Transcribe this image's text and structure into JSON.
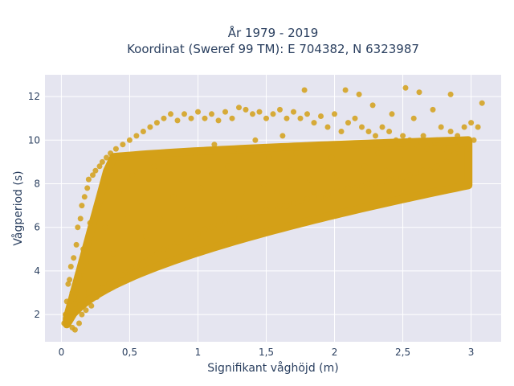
{
  "chart_data": {
    "type": "scatter",
    "title": "År 1979 - 2019",
    "subtitle": "Koordinat (Sweref 99 TM): E 704382, N 6323987",
    "xlabel": "Signifikant våghöjd (m)",
    "ylabel": "Vågperiod (s)",
    "xlim": [
      -0.12,
      3.22
    ],
    "ylim": [
      0.75,
      13.0
    ],
    "x_ticks": [
      0,
      0.5,
      1,
      1.5,
      2,
      2.5,
      3
    ],
    "x_tick_labels": [
      "0",
      "0,5",
      "1",
      "1,5",
      "2",
      "2,5",
      "3"
    ],
    "y_ticks": [
      2,
      4,
      6,
      8,
      10,
      12
    ],
    "y_tick_labels": [
      "2",
      "4",
      "6",
      "8",
      "10",
      "12"
    ],
    "grid": true,
    "legend": "none",
    "marker_color": "#D4A017",
    "plot_background": "#E5E5F0",
    "series": [
      {
        "values": [
          [
            0.02,
            1.6
          ],
          [
            0.03,
            2.0
          ],
          [
            0.04,
            2.6
          ],
          [
            0.05,
            3.4
          ],
          [
            0.06,
            3.6
          ],
          [
            0.05,
            2.2
          ],
          [
            0.07,
            4.2
          ],
          [
            0.08,
            1.4
          ],
          [
            0.08,
            3.0
          ],
          [
            0.09,
            4.6
          ],
          [
            0.1,
            1.3
          ],
          [
            0.1,
            2.5
          ],
          [
            0.11,
            5.2
          ],
          [
            0.12,
            6.0
          ],
          [
            0.13,
            1.6
          ],
          [
            0.13,
            3.8
          ],
          [
            0.14,
            6.4
          ],
          [
            0.15,
            2.0
          ],
          [
            0.15,
            7.0
          ],
          [
            0.16,
            5.0
          ],
          [
            0.17,
            7.4
          ],
          [
            0.18,
            2.2
          ],
          [
            0.18,
            4.4
          ],
          [
            0.19,
            7.8
          ],
          [
            0.2,
            8.2
          ],
          [
            0.2,
            3.0
          ],
          [
            0.21,
            6.2
          ],
          [
            0.22,
            2.4
          ],
          [
            0.23,
            8.4
          ],
          [
            0.24,
            5.4
          ],
          [
            0.25,
            8.6
          ],
          [
            0.26,
            2.8
          ],
          [
            0.27,
            7.0
          ],
          [
            0.28,
            8.8
          ],
          [
            0.3,
            3.2
          ],
          [
            0.3,
            9.0
          ],
          [
            0.32,
            6.0
          ],
          [
            0.33,
            9.2
          ],
          [
            0.35,
            3.4
          ],
          [
            0.36,
            9.4
          ],
          [
            0.38,
            4.8
          ],
          [
            0.4,
            9.6
          ],
          [
            0.4,
            3.6
          ],
          [
            0.42,
            7.6
          ],
          [
            0.45,
            9.8
          ],
          [
            0.45,
            3.8
          ],
          [
            0.48,
            6.6
          ],
          [
            0.5,
            10.0
          ],
          [
            0.5,
            4.0
          ],
          [
            0.52,
            8.4
          ],
          [
            0.55,
            10.2
          ],
          [
            0.55,
            4.2
          ],
          [
            0.58,
            7.2
          ],
          [
            0.6,
            10.4
          ],
          [
            0.6,
            4.4
          ],
          [
            0.62,
            5.6
          ],
          [
            0.65,
            10.6
          ],
          [
            0.65,
            4.6
          ],
          [
            0.68,
            8.8
          ],
          [
            0.7,
            10.8
          ],
          [
            0.7,
            4.8
          ],
          [
            0.72,
            6.4
          ],
          [
            0.75,
            11.0
          ],
          [
            0.75,
            5.0
          ],
          [
            0.78,
            9.0
          ],
          [
            0.8,
            11.2
          ],
          [
            0.8,
            5.1
          ],
          [
            0.82,
            7.4
          ],
          [
            0.85,
            10.9
          ],
          [
            0.85,
            5.3
          ],
          [
            0.88,
            8.2
          ],
          [
            0.9,
            11.2
          ],
          [
            0.9,
            5.4
          ],
          [
            0.92,
            6.8
          ],
          [
            0.95,
            11.0
          ],
          [
            0.95,
            5.6
          ],
          [
            0.98,
            9.4
          ],
          [
            1.0,
            11.3
          ],
          [
            1.0,
            5.7
          ],
          [
            1.02,
            7.8
          ],
          [
            1.05,
            11.0
          ],
          [
            1.05,
            5.9
          ],
          [
            1.08,
            8.6
          ],
          [
            1.1,
            11.2
          ],
          [
            1.1,
            6.0
          ],
          [
            1.12,
            9.8
          ],
          [
            1.15,
            10.9
          ],
          [
            1.15,
            6.1
          ],
          [
            1.18,
            7.2
          ],
          [
            1.2,
            11.3
          ],
          [
            1.2,
            6.2
          ],
          [
            1.22,
            8.8
          ],
          [
            1.25,
            11.0
          ],
          [
            1.25,
            6.3
          ],
          [
            1.28,
            9.6
          ],
          [
            1.3,
            11.5
          ],
          [
            1.3,
            6.4
          ],
          [
            1.32,
            7.6
          ],
          [
            1.35,
            11.4
          ],
          [
            1.35,
            6.5
          ],
          [
            1.38,
            8.4
          ],
          [
            1.4,
            11.2
          ],
          [
            1.4,
            6.6
          ],
          [
            1.42,
            10.0
          ],
          [
            1.45,
            11.3
          ],
          [
            1.45,
            6.7
          ],
          [
            1.48,
            8.0
          ],
          [
            1.5,
            11.0
          ],
          [
            1.5,
            6.8
          ],
          [
            1.52,
            9.2
          ],
          [
            1.55,
            11.2
          ],
          [
            1.55,
            6.9
          ],
          [
            1.58,
            7.6
          ],
          [
            1.6,
            11.4
          ],
          [
            1.6,
            7.0
          ],
          [
            1.62,
            10.2
          ],
          [
            1.65,
            11.0
          ],
          [
            1.65,
            7.0
          ],
          [
            1.68,
            8.6
          ],
          [
            1.7,
            11.3
          ],
          [
            1.7,
            7.1
          ],
          [
            1.72,
            9.4
          ],
          [
            1.75,
            11.0
          ],
          [
            1.75,
            7.2
          ],
          [
            1.78,
            12.3
          ],
          [
            1.8,
            11.2
          ],
          [
            1.8,
            7.3
          ],
          [
            1.82,
            8.2
          ],
          [
            1.85,
            10.8
          ],
          [
            1.85,
            7.4
          ],
          [
            1.88,
            9.8
          ],
          [
            1.9,
            11.1
          ],
          [
            1.9,
            7.4
          ],
          [
            1.92,
            8.6
          ],
          [
            1.95,
            10.6
          ],
          [
            1.95,
            7.5
          ],
          [
            1.98,
            9.2
          ],
          [
            2.0,
            11.2
          ],
          [
            2.0,
            7.6
          ],
          [
            2.02,
            8.4
          ],
          [
            2.05,
            10.4
          ],
          [
            2.05,
            7.7
          ],
          [
            2.08,
            12.3
          ],
          [
            2.1,
            10.8
          ],
          [
            2.1,
            7.8
          ],
          [
            2.12,
            9.0
          ],
          [
            2.15,
            11.0
          ],
          [
            2.15,
            7.8
          ],
          [
            2.18,
            12.1
          ],
          [
            2.2,
            10.6
          ],
          [
            2.2,
            7.9
          ],
          [
            2.22,
            8.8
          ],
          [
            2.25,
            10.4
          ],
          [
            2.25,
            8.0
          ],
          [
            2.28,
            11.6
          ],
          [
            2.3,
            10.2
          ],
          [
            2.3,
            8.0
          ],
          [
            2.32,
            9.4
          ],
          [
            2.35,
            10.6
          ],
          [
            2.35,
            8.1
          ],
          [
            2.38,
            8.6
          ],
          [
            2.4,
            10.4
          ],
          [
            2.4,
            8.2
          ],
          [
            2.42,
            11.2
          ],
          [
            2.45,
            10.0
          ],
          [
            2.45,
            8.3
          ],
          [
            2.48,
            9.2
          ],
          [
            2.5,
            10.2
          ],
          [
            2.5,
            8.3
          ],
          [
            2.52,
            12.4
          ],
          [
            2.55,
            10.0
          ],
          [
            2.55,
            8.4
          ],
          [
            2.58,
            11.0
          ],
          [
            2.6,
            9.8
          ],
          [
            2.6,
            8.5
          ],
          [
            2.62,
            12.2
          ],
          [
            2.65,
            10.2
          ],
          [
            2.65,
            8.6
          ],
          [
            2.68,
            9.6
          ],
          [
            2.7,
            9.8
          ],
          [
            2.7,
            8.6
          ],
          [
            2.72,
            11.4
          ],
          [
            2.75,
            10.0
          ],
          [
            2.75,
            8.8
          ],
          [
            2.78,
            10.6
          ],
          [
            2.8,
            9.6
          ],
          [
            2.82,
            9.0
          ],
          [
            2.85,
            12.1
          ],
          [
            2.85,
            10.4
          ],
          [
            2.88,
            9.4
          ],
          [
            2.9,
            10.2
          ],
          [
            2.92,
            9.8
          ],
          [
            2.95,
            10.6
          ],
          [
            2.98,
            9.6
          ],
          [
            3.0,
            10.8
          ],
          [
            3.02,
            10.0
          ],
          [
            3.05,
            10.6
          ],
          [
            3.08,
            11.7
          ]
        ]
      }
    ]
  }
}
